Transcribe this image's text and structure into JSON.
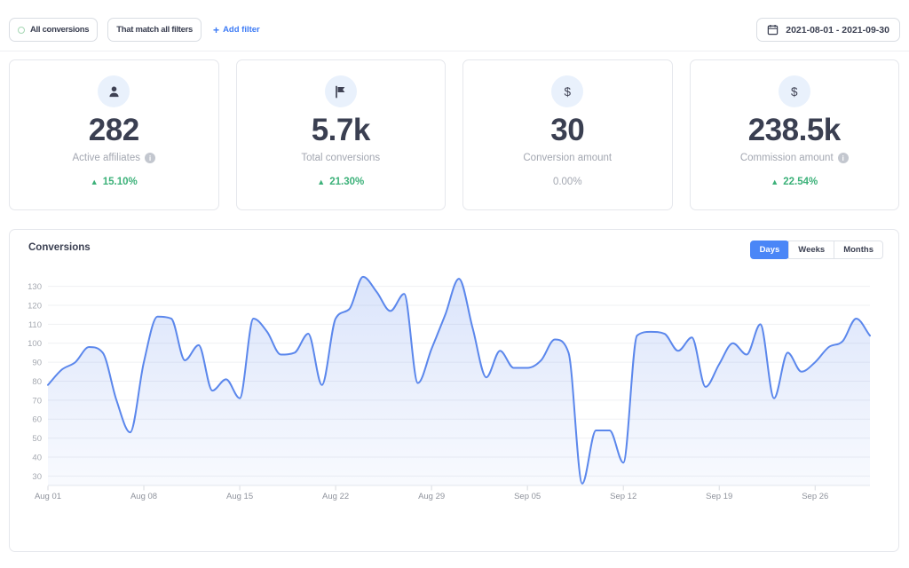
{
  "toolbar": {
    "type_filter_label": "All conversions",
    "match_filter_label": "That match all filters",
    "add_filter_plus": "+",
    "add_filter_label": "Add filter",
    "date_range": "2021-08-01 - 2021-09-30"
  },
  "stats": [
    {
      "icon": "user-icon",
      "value": "282",
      "label": "Active affiliates",
      "has_info": true,
      "change": "15.10%",
      "direction": "up"
    },
    {
      "icon": "flag-icon",
      "value": "5.7k",
      "label": "Total conversions",
      "has_info": false,
      "change": "21.30%",
      "direction": "up"
    },
    {
      "icon": "dollar-icon",
      "value": "30",
      "label": "Conversion amount",
      "has_info": false,
      "change": "0.00%",
      "direction": "flat"
    },
    {
      "icon": "dollar-icon",
      "value": "238.5k",
      "label": "Commission amount",
      "has_info": true,
      "change": "22.54%",
      "direction": "up"
    }
  ],
  "chart": {
    "title": "Conversions",
    "tabs": [
      {
        "label": "Days",
        "active": true
      },
      {
        "label": "Weeks",
        "active": false
      },
      {
        "label": "Months",
        "active": false
      }
    ]
  },
  "chart_data": {
    "type": "area",
    "title": "Conversions",
    "x_start": "2021-08-01",
    "x_tick_labels": [
      "Aug 01",
      "Aug 08",
      "Aug 15",
      "Aug 22",
      "Aug 29",
      "Sep 05",
      "Sep 12",
      "Sep 19",
      "Sep 26"
    ],
    "y_ticks": [
      30,
      40,
      50,
      60,
      70,
      80,
      90,
      100,
      110,
      120,
      130
    ],
    "ylim": [
      25,
      137
    ],
    "grid": true,
    "legend": false,
    "series": [
      {
        "name": "Conversions",
        "values": [
          78,
          86,
          90,
          98,
          95,
          70,
          53,
          90,
          114,
          113,
          91,
          99,
          75,
          81,
          71,
          113,
          106,
          94,
          95,
          105,
          78,
          113,
          118,
          135,
          127,
          117,
          126,
          79,
          97,
          115,
          134,
          108,
          82,
          96,
          87,
          87,
          91,
          102,
          95,
          26,
          54,
          54,
          37,
          104,
          106,
          105,
          96,
          103,
          77,
          89,
          100,
          94,
          110,
          71,
          95,
          85,
          90,
          98,
          101,
          113,
          104
        ]
      }
    ],
    "line_color": "#5b87ec",
    "fill_color": "#5b87ec"
  },
  "colors": {
    "accent_blue": "#4a86f7",
    "link_blue": "#3d7bf5",
    "green": "#3cb179",
    "text_dark": "#3a3f51",
    "text_gray": "#a3a7b1"
  }
}
